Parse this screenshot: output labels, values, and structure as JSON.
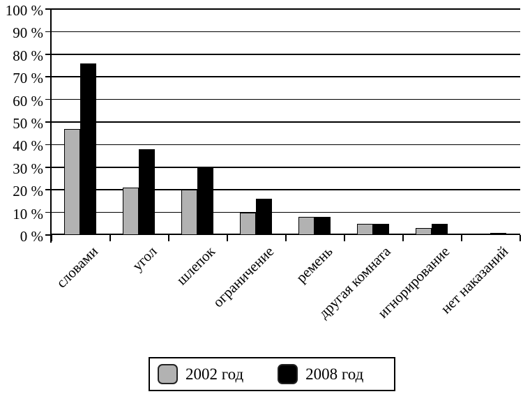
{
  "chart_data": {
    "type": "bar",
    "categories": [
      "словами",
      "угол",
      "шлепок",
      "ограничение",
      "ремень",
      "другая комната",
      "игнорирование",
      "нет наказаний"
    ],
    "series": [
      {
        "name": "2002 год",
        "color": "#b2b2b2",
        "values": [
          47,
          21,
          20,
          10,
          8,
          5,
          3,
          0
        ]
      },
      {
        "name": "2008 год",
        "color": "#000000",
        "values": [
          76,
          38,
          30,
          16,
          8,
          5,
          5,
          1
        ]
      }
    ],
    "title": "",
    "xlabel": "",
    "ylabel": "",
    "ylim": [
      0,
      100
    ],
    "y_tick_step": 10,
    "y_tick_suffix": " %",
    "grid": true,
    "legend_position": "bottom"
  }
}
